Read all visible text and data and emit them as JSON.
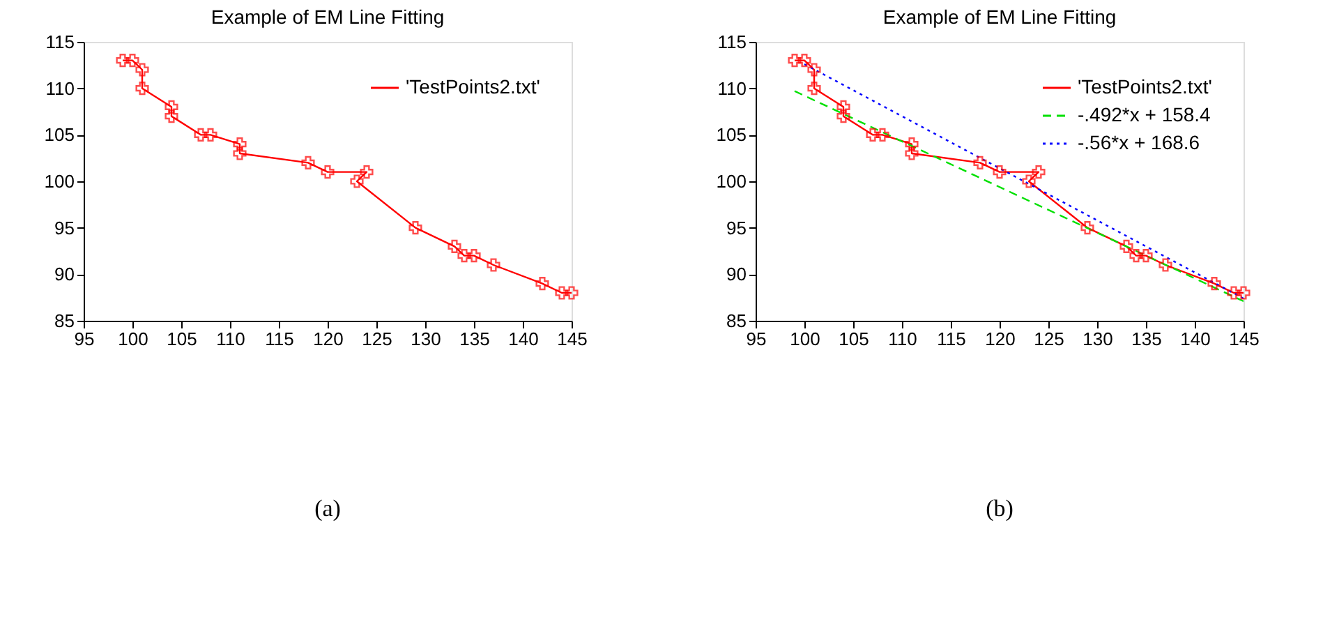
{
  "chart_data": [
    {
      "type": "line",
      "title": "Example of EM Line Fitting",
      "xlim": [
        95,
        145
      ],
      "ylim": [
        85,
        115
      ],
      "xticks": [
        95,
        100,
        105,
        110,
        115,
        120,
        125,
        130,
        135,
        140,
        145
      ],
      "yticks": [
        85,
        90,
        95,
        100,
        105,
        110,
        115
      ],
      "grid": false,
      "legend": "top right",
      "annotations": [
        "(a)"
      ],
      "series": [
        {
          "name": "'TestPoints2.txt'",
          "color": "#ff0000",
          "marker": "cross",
          "line_style": "solid",
          "x": [
            99,
            100,
            101,
            101,
            104,
            104,
            107,
            108,
            111,
            111,
            118,
            120,
            124,
            123,
            129,
            133,
            134,
            135,
            137,
            142,
            144,
            145
          ],
          "values": [
            113,
            113,
            112,
            110,
            108,
            107,
            105,
            105,
            104,
            103,
            102,
            101,
            101,
            100,
            95,
            93,
            92,
            92,
            91,
            89,
            88,
            88
          ]
        }
      ]
    },
    {
      "type": "line",
      "title": "Example of EM Line Fitting",
      "xlim": [
        95,
        145
      ],
      "ylim": [
        85,
        115
      ],
      "xticks": [
        95,
        100,
        105,
        110,
        115,
        120,
        125,
        130,
        135,
        140,
        145
      ],
      "yticks": [
        85,
        90,
        95,
        100,
        105,
        110,
        115
      ],
      "grid": false,
      "legend": "top right",
      "annotations": [
        "(b)"
      ],
      "series": [
        {
          "name": "'TestPoints2.txt'",
          "color": "#ff0000",
          "marker": "cross",
          "line_style": "solid",
          "x": [
            99,
            100,
            101,
            101,
            104,
            104,
            107,
            108,
            111,
            111,
            118,
            120,
            124,
            123,
            129,
            133,
            134,
            135,
            137,
            142,
            144,
            145
          ],
          "values": [
            113,
            113,
            112,
            110,
            108,
            107,
            105,
            105,
            104,
            103,
            102,
            101,
            101,
            100,
            95,
            93,
            92,
            92,
            91,
            89,
            88,
            88
          ]
        },
        {
          "name": "-.492*x + 158.4",
          "color": "#00e000",
          "marker": "none",
          "line_style": "dashed",
          "x": [
            99,
            145
          ],
          "values": [
            109.7,
            87.1
          ]
        },
        {
          "name": "-.56*x + 168.6",
          "color": "#0000ff",
          "marker": "none",
          "line_style": "dotted",
          "x": [
            100,
            145
          ],
          "values": [
            112.6,
            87.4
          ]
        }
      ]
    }
  ]
}
